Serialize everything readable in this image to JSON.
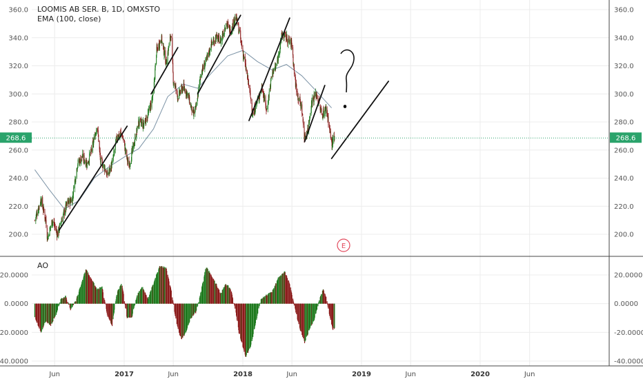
{
  "chart_data": [
    {
      "type": "candlestick",
      "title": "LOOMIS AB SER. B, 1D, OMXSTO",
      "indicator_label": "EMA (100, close)",
      "ylim": [
        188,
        362
      ],
      "y_ticks": [
        "360.0",
        "340.0",
        "320.0",
        "300.0",
        "280.0",
        "260.0",
        "240.0",
        "220.0",
        "200.0"
      ],
      "y_tick_values": [
        360,
        340,
        320,
        300,
        280,
        260,
        240,
        220,
        200
      ],
      "last_price": 268.6,
      "last_price_label": "268.6",
      "earnings_marker": "E",
      "x_ticks": [
        "Jun",
        "2017",
        "Jun",
        "2018",
        "Jun",
        "2019",
        "Jun",
        "2020",
        "Jun"
      ],
      "x_tick_dates": [
        "2016-06-01",
        "2017-01-01",
        "2017-06-01",
        "2018-01-01",
        "2018-06-01",
        "2019-01-01",
        "2019-06-01",
        "2020-01-01",
        "2020-06-01"
      ],
      "x_tick_bold": [
        false,
        true,
        false,
        true,
        false,
        true,
        false,
        true,
        false
      ],
      "x_range": [
        "2016-04-01",
        "2020-10-15"
      ],
      "price_path": [
        [
          "2016-04-01",
          210
        ],
        [
          "2016-04-20",
          225
        ],
        [
          "2016-05-05",
          210
        ],
        [
          "2016-05-10",
          197
        ],
        [
          "2016-05-25",
          210
        ],
        [
          "2016-06-10",
          200
        ],
        [
          "2016-06-25",
          212
        ],
        [
          "2016-07-10",
          222
        ],
        [
          "2016-07-25",
          225
        ],
        [
          "2016-08-10",
          250
        ],
        [
          "2016-08-25",
          255
        ],
        [
          "2016-09-10",
          250
        ],
        [
          "2016-09-25",
          262
        ],
        [
          "2016-10-10",
          278
        ],
        [
          "2016-10-20",
          252
        ],
        [
          "2016-11-01",
          248
        ],
        [
          "2016-11-10",
          242
        ],
        [
          "2016-11-25",
          250
        ],
        [
          "2016-12-10",
          270
        ],
        [
          "2016-12-25",
          272
        ],
        [
          "2017-01-15",
          248
        ],
        [
          "2017-02-01",
          265
        ],
        [
          "2017-02-15",
          280
        ],
        [
          "2017-03-01",
          278
        ],
        [
          "2017-03-15",
          285
        ],
        [
          "2017-04-01",
          300
        ],
        [
          "2017-04-10",
          330
        ],
        [
          "2017-04-25",
          340
        ],
        [
          "2017-05-10",
          322
        ],
        [
          "2017-05-25",
          343
        ],
        [
          "2017-06-01",
          310
        ],
        [
          "2017-06-15",
          298
        ],
        [
          "2017-07-01",
          305
        ],
        [
          "2017-07-15",
          300
        ],
        [
          "2017-08-01",
          285
        ],
        [
          "2017-08-10",
          290
        ],
        [
          "2017-08-25",
          315
        ],
        [
          "2017-09-10",
          323
        ],
        [
          "2017-09-25",
          335
        ],
        [
          "2017-10-10",
          340
        ],
        [
          "2017-10-25",
          338
        ],
        [
          "2017-11-10",
          350
        ],
        [
          "2017-11-25",
          345
        ],
        [
          "2017-12-10",
          355
        ],
        [
          "2017-12-20",
          345
        ],
        [
          "2018-01-01",
          330
        ],
        [
          "2018-01-20",
          305
        ],
        [
          "2018-02-01",
          285
        ],
        [
          "2018-02-15",
          295
        ],
        [
          "2018-03-01",
          305
        ],
        [
          "2018-03-15",
          288
        ],
        [
          "2018-04-01",
          315
        ],
        [
          "2018-04-15",
          320
        ],
        [
          "2018-05-01",
          342
        ],
        [
          "2018-05-15",
          340
        ],
        [
          "2018-06-01",
          335
        ],
        [
          "2018-06-10",
          310
        ],
        [
          "2018-06-20",
          298
        ],
        [
          "2018-07-01",
          290
        ],
        [
          "2018-07-10",
          268
        ],
        [
          "2018-07-20",
          275
        ],
        [
          "2018-08-01",
          295
        ],
        [
          "2018-08-15",
          300
        ],
        [
          "2018-09-01",
          285
        ],
        [
          "2018-09-15",
          290
        ],
        [
          "2018-10-01",
          265
        ],
        [
          "2018-10-10",
          268
        ]
      ],
      "ema": [
        [
          "2016-04-01",
          246
        ],
        [
          "2016-05-15",
          232
        ],
        [
          "2016-07-01",
          218
        ],
        [
          "2016-08-15",
          224
        ],
        [
          "2016-10-01",
          240
        ],
        [
          "2016-11-15",
          248
        ],
        [
          "2017-01-01",
          255
        ],
        [
          "2017-02-15",
          261
        ],
        [
          "2017-04-01",
          275
        ],
        [
          "2017-05-15",
          298
        ],
        [
          "2017-07-01",
          307
        ],
        [
          "2017-08-15",
          304
        ],
        [
          "2017-10-01",
          316
        ],
        [
          "2017-11-15",
          327
        ],
        [
          "2018-01-01",
          331
        ],
        [
          "2018-02-15",
          323
        ],
        [
          "2018-04-01",
          317
        ],
        [
          "2018-05-15",
          321
        ],
        [
          "2018-07-01",
          313
        ],
        [
          "2018-08-15",
          302
        ],
        [
          "2018-10-01",
          290
        ]
      ],
      "drawings": [
        [
          [
            "2016-06-15",
            203
          ],
          [
            "2017-01-10",
            277
          ]
        ],
        [
          [
            "2017-03-25",
            300
          ],
          [
            "2017-06-15",
            333
          ]
        ],
        [
          [
            "2017-08-15",
            300
          ],
          [
            "2017-12-25",
            356
          ]
        ],
        [
          [
            "2018-01-20",
            281
          ],
          [
            "2018-05-25",
            354
          ]
        ],
        [
          [
            "2018-07-10",
            266
          ],
          [
            "2018-09-10",
            306
          ]
        ],
        [
          [
            "2018-10-01",
            254
          ],
          [
            "2019-03-25",
            309
          ]
        ]
      ],
      "question_mark": "?"
    },
    {
      "type": "histogram",
      "title": "AO",
      "ylim": [
        -40,
        30
      ],
      "y_ticks": [
        "20.0000",
        "0.0000",
        "-20.0000",
        "-40.0000"
      ],
      "y_tick_values": [
        20,
        0,
        -20,
        -40
      ],
      "ao_path": [
        [
          "2016-04-01",
          -10
        ],
        [
          "2016-04-20",
          -20
        ],
        [
          "2016-05-05",
          -12
        ],
        [
          "2016-05-20",
          -15
        ],
        [
          "2016-06-05",
          -8
        ],
        [
          "2016-06-20",
          3
        ],
        [
          "2016-07-05",
          5
        ],
        [
          "2016-07-20",
          -4
        ],
        [
          "2016-08-05",
          2
        ],
        [
          "2016-08-20",
          12
        ],
        [
          "2016-09-05",
          24
        ],
        [
          "2016-09-20",
          18
        ],
        [
          "2016-10-10",
          10
        ],
        [
          "2016-10-25",
          12
        ],
        [
          "2016-11-10",
          -8
        ],
        [
          "2016-11-25",
          -15
        ],
        [
          "2016-12-10",
          8
        ],
        [
          "2016-12-25",
          14
        ],
        [
          "2017-01-10",
          -10
        ],
        [
          "2017-01-25",
          -9
        ],
        [
          "2017-02-10",
          6
        ],
        [
          "2017-02-25",
          12
        ],
        [
          "2017-03-15",
          3
        ],
        [
          "2017-04-01",
          14
        ],
        [
          "2017-04-20",
          26
        ],
        [
          "2017-05-10",
          25
        ],
        [
          "2017-05-25",
          10
        ],
        [
          "2017-06-10",
          -12
        ],
        [
          "2017-06-25",
          -25
        ],
        [
          "2017-07-10",
          -20
        ],
        [
          "2017-07-25",
          -10
        ],
        [
          "2017-08-10",
          -6
        ],
        [
          "2017-08-25",
          8
        ],
        [
          "2017-09-10",
          26
        ],
        [
          "2017-09-25",
          20
        ],
        [
          "2017-10-10",
          14
        ],
        [
          "2017-10-25",
          7
        ],
        [
          "2017-11-10",
          14
        ],
        [
          "2017-11-25",
          10
        ],
        [
          "2017-12-10",
          -5
        ],
        [
          "2017-12-20",
          -20
        ],
        [
          "2018-01-10",
          -37
        ],
        [
          "2018-01-25",
          -30
        ],
        [
          "2018-02-10",
          -13
        ],
        [
          "2018-02-25",
          3
        ],
        [
          "2018-03-15",
          6
        ],
        [
          "2018-04-01",
          8
        ],
        [
          "2018-04-20",
          18
        ],
        [
          "2018-05-10",
          22
        ],
        [
          "2018-05-25",
          14
        ],
        [
          "2018-06-10",
          -3
        ],
        [
          "2018-06-25",
          -17
        ],
        [
          "2018-07-10",
          -27
        ],
        [
          "2018-07-25",
          -18
        ],
        [
          "2018-08-10",
          -10
        ],
        [
          "2018-08-25",
          3
        ],
        [
          "2018-09-05",
          10
        ],
        [
          "2018-09-15",
          4
        ],
        [
          "2018-09-25",
          -8
        ],
        [
          "2018-10-05",
          -18
        ],
        [
          "2018-10-10",
          -17
        ]
      ]
    }
  ],
  "colors": {
    "up": "#1e7a1e",
    "down": "#8b1a1a",
    "ema": "#7c93a6",
    "drawing": "#111111",
    "price_line": "#2aa36b",
    "grid": "#ececec",
    "earnings": "#e2495c"
  }
}
